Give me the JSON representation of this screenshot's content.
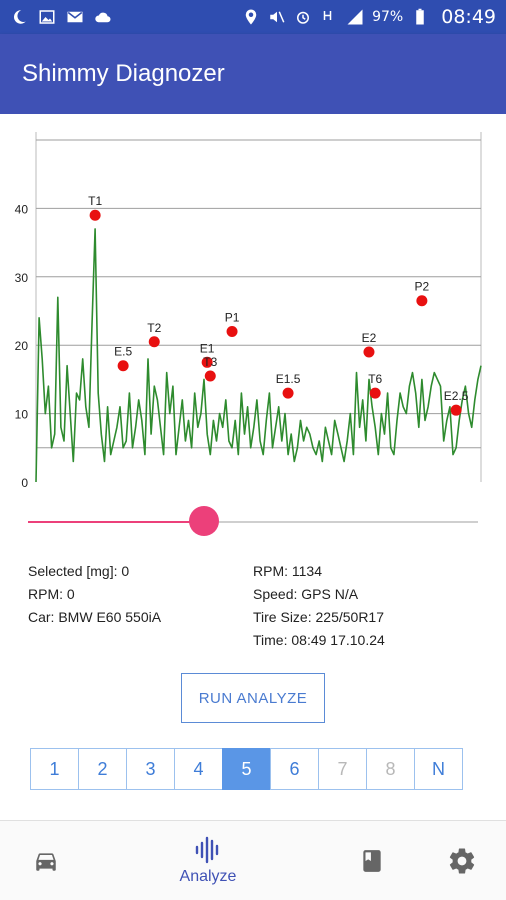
{
  "status_bar": {
    "battery": "97%",
    "time": "08:49",
    "icons": [
      "moon-icon",
      "image-icon",
      "mail-icon",
      "cloud-icon",
      "location-icon",
      "mute-icon",
      "alarm-icon",
      "hplus-signal-icon",
      "signal-icon",
      "battery-icon"
    ]
  },
  "app_bar": {
    "title": "Shimmy Diagnozer"
  },
  "chart_data": {
    "type": "line",
    "y_ticks": [
      "0",
      "10",
      "20",
      "30",
      "40"
    ],
    "ylim": [
      0,
      50
    ],
    "grid": true,
    "series": [
      {
        "color": "#2e8b2e",
        "values": [
          0,
          24,
          18,
          10,
          14,
          5,
          7,
          27,
          8,
          6,
          17,
          10,
          3,
          13,
          12,
          18,
          11,
          8,
          23,
          37,
          13,
          7,
          3,
          11,
          4,
          6,
          8,
          11,
          5,
          6,
          13,
          5,
          8,
          12,
          9,
          4,
          18,
          7,
          14,
          12,
          8,
          4,
          16,
          10,
          14,
          4,
          8,
          12,
          6,
          9,
          5,
          13,
          8,
          10,
          15,
          7,
          4,
          9,
          6,
          10,
          8,
          12,
          6,
          5,
          9,
          4,
          13,
          7,
          11,
          5,
          8,
          12,
          6,
          4,
          9,
          13,
          5,
          8,
          11,
          6,
          10,
          4,
          7,
          3,
          5,
          9,
          6,
          8,
          7,
          5,
          4,
          6,
          3,
          8,
          6,
          4,
          9,
          7,
          5,
          3,
          6,
          10,
          4,
          16,
          8,
          12,
          6,
          15,
          11,
          8,
          4,
          10,
          7,
          13,
          5,
          4,
          9,
          13,
          11,
          10,
          14,
          16,
          13,
          8,
          15,
          9,
          11,
          14,
          16,
          15,
          14,
          6,
          9,
          11,
          4,
          5,
          9,
          12,
          14,
          10,
          8,
          12,
          15,
          17
        ]
      }
    ],
    "markers": [
      {
        "label": "T1",
        "x": 19,
        "y": 39
      },
      {
        "label": "E.5",
        "x": 28,
        "y": 17
      },
      {
        "label": "T2",
        "x": 38,
        "y": 20.5
      },
      {
        "label": "E1",
        "x": 55,
        "y": 17.5
      },
      {
        "label": "T3",
        "x": 56,
        "y": 15.5
      },
      {
        "label": "P1",
        "x": 63,
        "y": 22
      },
      {
        "label": "E1.5",
        "x": 81,
        "y": 13
      },
      {
        "label": "E2",
        "x": 107,
        "y": 19
      },
      {
        "label": "T6",
        "x": 109,
        "y": 13
      },
      {
        "label": "P2",
        "x": 124,
        "y": 26.5
      },
      {
        "label": "E2.5",
        "x": 135,
        "y": 10.5
      }
    ],
    "marker_color": "#e81010"
  },
  "slider": {
    "value": 0.39,
    "color": "#ec407a"
  },
  "info": {
    "selected": "Selected [mg]: 0",
    "rpm_left": "RPM: 0",
    "car": "Car: BMW E60 550iA",
    "rpm_right": "RPM: 1134",
    "speed": "Speed: GPS N/A",
    "tire": "Tire Size: 225/50R17",
    "time": "Time: 08:49 17.10.24"
  },
  "run_button": {
    "label": "RUN ANALYZE"
  },
  "pager": {
    "pages": [
      {
        "label": "1",
        "state": "normal"
      },
      {
        "label": "2",
        "state": "normal"
      },
      {
        "label": "3",
        "state": "normal"
      },
      {
        "label": "4",
        "state": "normal"
      },
      {
        "label": "5",
        "state": "active"
      },
      {
        "label": "6",
        "state": "normal"
      },
      {
        "label": "7",
        "state": "disabled"
      },
      {
        "label": "8",
        "state": "disabled"
      },
      {
        "label": "N",
        "state": "normal"
      }
    ]
  },
  "bottom_nav": {
    "items": [
      {
        "name": "car-icon",
        "label": ""
      },
      {
        "name": "waveform-icon",
        "label": "Analyze"
      },
      {
        "name": "book-icon",
        "label": ""
      },
      {
        "name": "gear-icon",
        "label": ""
      }
    ]
  }
}
